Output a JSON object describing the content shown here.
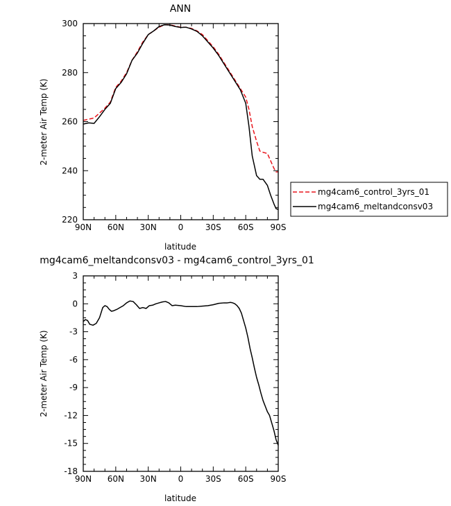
{
  "chart_data": [
    {
      "type": "line",
      "title": "ANN",
      "xlabel": "latitude",
      "ylabel": "2-meter Air Temp (K)",
      "xlim": [
        90,
        -90
      ],
      "ylim": [
        220,
        300
      ],
      "xticks": [
        90,
        60,
        30,
        0,
        -30,
        -60,
        -90
      ],
      "xtick_labels": [
        "90N",
        "60N",
        "30N",
        "0",
        "30S",
        "60S",
        "90S"
      ],
      "yticks": [
        220,
        240,
        260,
        280,
        300
      ],
      "ytick_labels": [
        "220",
        "240",
        "260",
        "280",
        "300"
      ],
      "legend_position": "right",
      "series": [
        {
          "name": "mg4cam6_control_3yrs_01",
          "color": "#e8141b",
          "dash": "dashed",
          "x": [
            90,
            85,
            80,
            75,
            70,
            65,
            60,
            55,
            50,
            45,
            40,
            35,
            30,
            25,
            20,
            15,
            10,
            5,
            0,
            -5,
            -10,
            -15,
            -20,
            -25,
            -30,
            -35,
            -40,
            -45,
            -50,
            -55,
            -60,
            -63,
            -66,
            -70,
            -73,
            -76,
            -80,
            -83,
            -86,
            -88,
            -90
          ],
          "y": [
            260.5,
            261,
            261.5,
            263.5,
            265.5,
            268,
            274,
            276.5,
            280,
            285,
            288.5,
            292.5,
            295.5,
            297,
            298.5,
            299.5,
            299.5,
            299,
            298.5,
            298.5,
            298,
            297,
            295.5,
            293,
            290.5,
            287.5,
            284,
            280.5,
            277,
            273.5,
            270,
            265,
            258,
            252,
            248,
            247.5,
            247,
            244,
            241,
            239.5,
            239.5
          ]
        },
        {
          "name": "mg4cam6_meltandconsv03",
          "color": "#000000",
          "dash": "solid",
          "x": [
            90,
            85,
            80,
            75,
            70,
            65,
            60,
            55,
            50,
            45,
            40,
            35,
            30,
            25,
            20,
            15,
            10,
            5,
            0,
            -5,
            -10,
            -15,
            -20,
            -25,
            -30,
            -35,
            -40,
            -45,
            -50,
            -55,
            -60,
            -63,
            -66,
            -70,
            -73,
            -76,
            -80,
            -83,
            -86,
            -88,
            -90
          ],
          "y": [
            259,
            259.5,
            259.3,
            262,
            265,
            267.5,
            273.5,
            276,
            279.5,
            285,
            288,
            292,
            295.5,
            297,
            298.8,
            299.5,
            299.4,
            298.8,
            298.4,
            298.5,
            297.8,
            296.8,
            295,
            292.5,
            290,
            287,
            283.5,
            280,
            276.5,
            273,
            267.5,
            258,
            246,
            238,
            236.5,
            236.5,
            234,
            230,
            226.5,
            224.5,
            224.2
          ]
        }
      ]
    },
    {
      "type": "line",
      "title": "mg4cam6_meltandconsv03 - mg4cam6_control_3yrs_01",
      "xlabel": "latitude",
      "ylabel": "2-meter Air Temp (K)",
      "xlim": [
        90,
        -90
      ],
      "ylim": [
        -18,
        3
      ],
      "xticks": [
        90,
        60,
        30,
        0,
        -30,
        -60,
        -90
      ],
      "xtick_labels": [
        "90N",
        "60N",
        "30N",
        "0",
        "30S",
        "60S",
        "90S"
      ],
      "yticks": [
        -18,
        -15,
        -12,
        -9,
        -6,
        -3,
        0,
        3
      ],
      "ytick_labels": [
        "-18",
        "-15",
        "-12",
        "-9",
        "-6",
        "-3",
        "0",
        "3"
      ],
      "series": [
        {
          "color": "#000000",
          "dash": "solid",
          "x": [
            90,
            88,
            86,
            84,
            81,
            78,
            75,
            72,
            70,
            68,
            66,
            64,
            62,
            59,
            56,
            53,
            50,
            47,
            44,
            41,
            38,
            35,
            32,
            29,
            26,
            23,
            20,
            17,
            14,
            11,
            8,
            5,
            0,
            -5,
            -10,
            -15,
            -20,
            -25,
            -30,
            -35,
            -40,
            -43,
            -46,
            -48,
            -50,
            -52,
            -54,
            -56,
            -58,
            -60,
            -62,
            -64,
            -66,
            -68,
            -70,
            -72,
            -74,
            -76,
            -78,
            -80,
            -82,
            -84,
            -86,
            -88,
            -90
          ],
          "y": [
            -1.9,
            -1.7,
            -1.8,
            -2.2,
            -2.3,
            -2.1,
            -1.5,
            -0.4,
            -0.2,
            -0.3,
            -0.6,
            -0.8,
            -0.75,
            -0.6,
            -0.4,
            -0.2,
            0.1,
            0.3,
            0.25,
            -0.1,
            -0.5,
            -0.4,
            -0.5,
            -0.2,
            -0.15,
            0,
            0.1,
            0.2,
            0.25,
            0.1,
            -0.2,
            -0.15,
            -0.2,
            -0.3,
            -0.3,
            -0.3,
            -0.25,
            -0.2,
            -0.1,
            0.05,
            0.1,
            0.1,
            0.15,
            0.1,
            0,
            -0.2,
            -0.5,
            -1,
            -1.8,
            -2.6,
            -3.6,
            -4.8,
            -5.8,
            -6.9,
            -7.9,
            -8.7,
            -9.6,
            -10.4,
            -11.0,
            -11.6,
            -12.0,
            -12.8,
            -13.6,
            -14.6,
            -15.2
          ]
        }
      ]
    }
  ]
}
